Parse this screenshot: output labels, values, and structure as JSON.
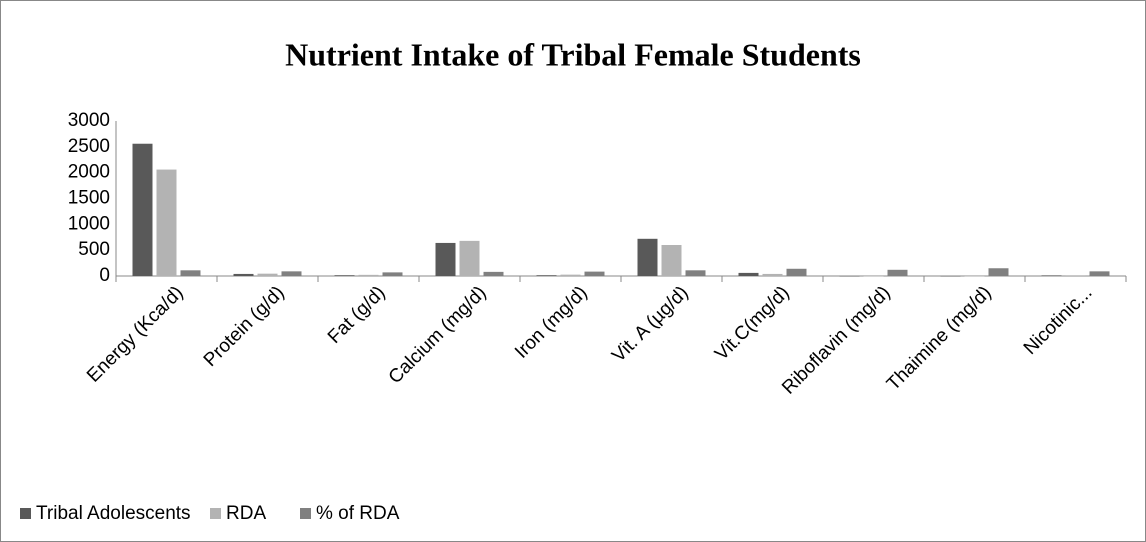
{
  "chart_data": {
    "type": "bar",
    "title": "Nutrient Intake of Tribal Female Students",
    "categories": [
      "Energy (Kca/d)",
      "Protein (g/d)",
      "Fat (g/d)",
      "Calcium (mg/d)",
      "Iron (mg/d)",
      "Vit. A (µg/d)",
      "Vit.C(mg/d)",
      "Riboflavin (mg/d)",
      "Thaimine (mg/d)",
      "Nicotinic..."
    ],
    "series": [
      {
        "name": "Tribal Adolescents",
        "color": "#595959",
        "values": [
          2560,
          40,
          15,
          640,
          15,
          720,
          60,
          1,
          1,
          12
        ]
      },
      {
        "name": "RDA",
        "color": "#b3b3b3",
        "values": [
          2060,
          45,
          22,
          680,
          26,
          600,
          40,
          1,
          1,
          14
        ]
      },
      {
        "name": "% of RDA",
        "color": "#808080",
        "values": [
          110,
          90,
          70,
          80,
          85,
          110,
          140,
          120,
          150,
          90
        ]
      }
    ],
    "ylim": [
      0,
      3000
    ],
    "yticks": [
      0,
      500,
      1000,
      1500,
      2000,
      2500,
      3000
    ],
    "grid": false,
    "legend": "bottom"
  }
}
